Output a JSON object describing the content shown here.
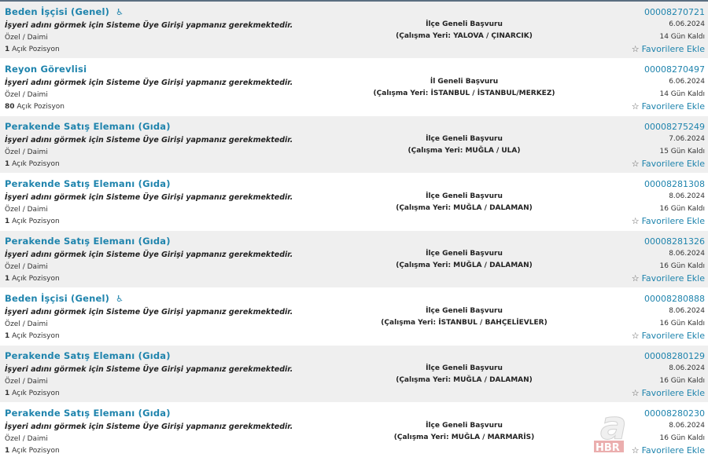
{
  "note": "İşyeri adını görmek için Sisteme Üye Girişi yapmanız gerekmektedir.",
  "fav_label": "Favorilere Ekle",
  "pos_suffix": "Açık Pozisyon",
  "watermark": "HBR",
  "jobs": [
    {
      "title": "Beden İşçisi (Genel)",
      "wheelchair": true,
      "type": "Özel / Daimi",
      "positions": "1",
      "scope": "İlçe Geneli Başvuru",
      "location": "(Çalışma Yeri: YALOVA / ÇINARCIK)",
      "id": "00008270721",
      "date": "6.06.2024",
      "remaining": "14 Gün Kaldı"
    },
    {
      "title": "Reyon Görevlisi",
      "wheelchair": false,
      "type": "Özel / Daimi",
      "positions": "80",
      "scope": "İl Geneli Başvuru",
      "location": "(Çalışma Yeri: İSTANBUL / İSTANBUL/MERKEZ)",
      "id": "00008270497",
      "date": "6.06.2024",
      "remaining": "14 Gün Kaldı"
    },
    {
      "title": "Perakende Satış Elemanı (Gıda)",
      "wheelchair": false,
      "type": "Özel / Daimi",
      "positions": "1",
      "scope": "İlçe Geneli Başvuru",
      "location": "(Çalışma Yeri: MUĞLA / ULA)",
      "id": "00008275249",
      "date": "7.06.2024",
      "remaining": "15 Gün Kaldı"
    },
    {
      "title": "Perakende Satış Elemanı (Gıda)",
      "wheelchair": false,
      "type": "Özel / Daimi",
      "positions": "1",
      "scope": "İlçe Geneli Başvuru",
      "location": "(Çalışma Yeri: MUĞLA / DALAMAN)",
      "id": "00008281308",
      "date": "8.06.2024",
      "remaining": "16 Gün Kaldı"
    },
    {
      "title": "Perakende Satış Elemanı (Gıda)",
      "wheelchair": false,
      "type": "Özel / Daimi",
      "positions": "1",
      "scope": "İlçe Geneli Başvuru",
      "location": "(Çalışma Yeri: MUĞLA / DALAMAN)",
      "id": "00008281326",
      "date": "8.06.2024",
      "remaining": "16 Gün Kaldı"
    },
    {
      "title": "Beden İşçisi (Genel)",
      "wheelchair": true,
      "type": "Özel / Daimi",
      "positions": "1",
      "scope": "İlçe Geneli Başvuru",
      "location": "(Çalışma Yeri: İSTANBUL / BAHÇELİEVLER)",
      "id": "00008280888",
      "date": "8.06.2024",
      "remaining": "16 Gün Kaldı"
    },
    {
      "title": "Perakende Satış Elemanı (Gıda)",
      "wheelchair": false,
      "type": "Özel / Daimi",
      "positions": "1",
      "scope": "İlçe Geneli Başvuru",
      "location": "(Çalışma Yeri: MUĞLA / DALAMAN)",
      "id": "00008280129",
      "date": "8.06.2024",
      "remaining": "16 Gün Kaldı"
    },
    {
      "title": "Perakende Satış Elemanı (Gıda)",
      "wheelchair": false,
      "type": "Özel / Daimi",
      "positions": "1",
      "scope": "İlçe Geneli Başvuru",
      "location": "(Çalışma Yeri: MUĞLA / MARMARİS)",
      "id": "00008280230",
      "date": "8.06.2024",
      "remaining": "16 Gün Kaldı"
    }
  ]
}
